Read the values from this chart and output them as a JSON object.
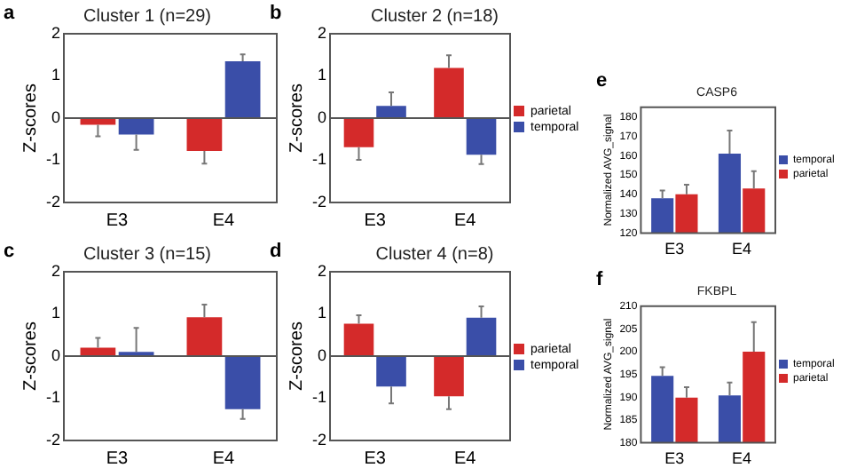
{
  "chart_data": [
    {
      "type": "bar",
      "ref_lines": [
        {
          "axis": "y",
          "value": 0,
          "color": "#555555"
        }
      ],
      "title": "Cluster 1 (n=29)",
      "ylabel": "Z-scores",
      "annotations": [
        "a"
      ],
      "categories": [
        "E3",
        "E4"
      ],
      "ylim": [
        -2,
        2
      ],
      "yticks": [
        -2,
        -1,
        0,
        1,
        2
      ],
      "grid": false,
      "legend": false,
      "series": [
        {
          "color": "#d42a2a",
          "values": [
            -0.16,
            -0.78
          ],
          "errors": [
            [
              -0.43,
              -0.16
            ],
            [
              -1.08,
              -0.78
            ]
          ]
        },
        {
          "color": "#3a4ea8",
          "values": [
            -0.39,
            1.35
          ],
          "errors": [
            [
              -0.75,
              -0.39
            ],
            [
              1.35,
              1.51
            ]
          ]
        }
      ]
    },
    {
      "type": "bar",
      "ref_lines": [
        {
          "axis": "y",
          "value": 0,
          "color": "#555555"
        }
      ],
      "title": "Cluster 2 (n=18)",
      "ylabel": "Z-scores",
      "annotations": [
        "b"
      ],
      "categories": [
        "E3",
        "E4"
      ],
      "ylim": [
        -2,
        2
      ],
      "yticks": [
        -2,
        -1,
        0,
        1,
        2
      ],
      "grid": false,
      "legend": "right",
      "series": [
        {
          "name": "parietal",
          "color": "#d42a2a",
          "values": [
            -0.69,
            1.19
          ],
          "errors": [
            [
              -0.99,
              -0.69
            ],
            [
              1.19,
              1.49
            ]
          ]
        },
        {
          "name": "temporal",
          "color": "#3a4ea8",
          "values": [
            0.29,
            -0.87
          ],
          "errors": [
            [
              0.29,
              0.61
            ],
            [
              -1.09,
              -0.87
            ]
          ]
        }
      ]
    },
    {
      "type": "bar",
      "title": "CASP6",
      "ylabel": "Normalized AVG_signal",
      "annotations": [
        "e"
      ],
      "categories": [
        "E3",
        "E4"
      ],
      "ylim": [
        120,
        185
      ],
      "yticks": [
        120,
        130,
        140,
        150,
        160,
        170,
        180
      ],
      "grid": false,
      "legend": "right",
      "series": [
        {
          "name": "temporal",
          "color": "#3a4ea8",
          "values": [
            138,
            161
          ],
          "errors": [
            [
              138,
              142
            ],
            [
              161,
              173
            ]
          ]
        },
        {
          "name": "parietal",
          "color": "#d42a2a",
          "values": [
            140,
            143
          ],
          "errors": [
            [
              140,
              145
            ],
            [
              143,
              152
            ]
          ]
        }
      ]
    },
    {
      "type": "bar",
      "ref_lines": [
        {
          "axis": "y",
          "value": 0,
          "color": "#555555"
        }
      ],
      "title": "Cluster 3 (n=15)",
      "ylabel": "Z-scores",
      "annotations": [
        "c"
      ],
      "categories": [
        "E3",
        "E4"
      ],
      "ylim": [
        -2,
        2
      ],
      "yticks": [
        -2,
        -1,
        0,
        1,
        2
      ],
      "grid": false,
      "legend": false,
      "series": [
        {
          "color": "#d42a2a",
          "values": [
            0.2,
            0.92
          ],
          "errors": [
            [
              0.2,
              0.43
            ],
            [
              0.92,
              1.22
            ]
          ]
        },
        {
          "color": "#3a4ea8",
          "values": [
            0.1,
            -1.26
          ],
          "errors": [
            [
              0.1,
              0.67
            ],
            [
              -1.49,
              -1.26
            ]
          ]
        }
      ]
    },
    {
      "type": "bar",
      "ref_lines": [
        {
          "axis": "y",
          "value": 0,
          "color": "#555555"
        }
      ],
      "title": "Cluster 4 (n=8)",
      "ylabel": "Z-scores",
      "annotations": [
        "d"
      ],
      "categories": [
        "E3",
        "E4"
      ],
      "ylim": [
        -2,
        2
      ],
      "yticks": [
        -2,
        -1,
        0,
        1,
        2
      ],
      "grid": false,
      "legend": "right",
      "series": [
        {
          "name": "parietal",
          "color": "#d42a2a",
          "values": [
            0.77,
            -0.95
          ],
          "errors": [
            [
              0.77,
              0.97
            ],
            [
              -1.26,
              -0.95
            ]
          ]
        },
        {
          "name": "temporal",
          "color": "#3a4ea8",
          "values": [
            -0.72,
            0.91
          ],
          "errors": [
            [
              -1.12,
              -0.72
            ],
            [
              0.91,
              1.18
            ]
          ]
        }
      ]
    },
    {
      "type": "bar",
      "title": "FKBPL",
      "ylabel": "Normalized AVG_signal",
      "annotations": [
        "f"
      ],
      "categories": [
        "E3",
        "E4"
      ],
      "ylim": [
        180,
        210
      ],
      "yticks": [
        180,
        185,
        190,
        195,
        200,
        205,
        210
      ],
      "grid": false,
      "legend": "right",
      "series": [
        {
          "name": "temporal",
          "color": "#3a4ea8",
          "values": [
            194.7,
            190.4
          ],
          "errors": [
            [
              194.7,
              196.6
            ],
            [
              190.4,
              193.2
            ]
          ]
        },
        {
          "name": "parietal",
          "color": "#d42a2a",
          "values": [
            189.9,
            200.0
          ],
          "errors": [
            [
              189.9,
              192.2
            ],
            [
              200.0,
              206.5
            ]
          ]
        }
      ]
    }
  ]
}
